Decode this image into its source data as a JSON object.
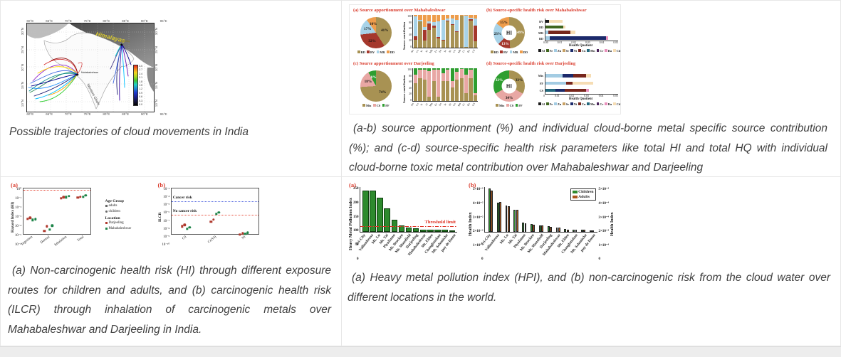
{
  "page": {
    "background": "#ffffff",
    "grid_border": "#e7e7e7",
    "accent_red": "#d93a2b"
  },
  "cells": {
    "top_left": {
      "caption": "Possible trajectories of cloud movements in India",
      "map": {
        "lon_ticks": [
          "60°E",
          "65°E",
          "70°E",
          "75°E",
          "80°E",
          "85°E",
          "90°E",
          "95°E"
        ],
        "lat_ticks": [
          "30°N",
          "25°N",
          "20°N",
          "15°N",
          "10°N"
        ],
        "region_label": "Himalayas",
        "site_northeast": "Darjeeling",
        "site_southwest": "Mahabaleshwar",
        "coast_label": "Western Ghats",
        "colorbar_ticks": [
          "3.0",
          "2.7",
          "2.4",
          "2.1",
          "1.8",
          "1.5",
          "1.2",
          "0.9",
          "0.6",
          "0.3",
          "0.0"
        ]
      }
    },
    "top_right": {
      "caption": "(a-b) source apportionment (%) and individual cloud-borne metal specific source contribution (%); and (c-d) source-specific health risk parameters like total HI and total HQ with individual cloud-borne toxic metal contribution over Mahabaleshwar and Darjeeling"
    },
    "bottom_left": {
      "caption": "(a) Non-carcinogenic health risk (HI) through different exposure routes for children and adults, and (b) carcinogenic health risk (ILCR) through inhalation of carcinogenic metals over Mahabaleshwar and Darjeeling in India.",
      "legend": {
        "age_title": "Age Group",
        "age_items": [
          "adults",
          "children"
        ],
        "location_title": "Location",
        "location_items": [
          {
            "label": "Darjeeling",
            "color": "#b03a2e"
          },
          {
            "label": "Mahabaleshwar",
            "color": "#1e8449"
          }
        ]
      }
    },
    "bottom_right": {
      "caption": "(a) Heavy metal pollution index (HPI), and (b) non-carcinogenic risk from the cloud water over different locations in the world."
    }
  },
  "chart_data": [
    {
      "type": "pie",
      "title": "(a)  Source apportionment over Mahabaleshwar",
      "labels": [
        "RD",
        "BV",
        "MR",
        "DD"
      ],
      "values": [
        41,
        32,
        17,
        10
      ],
      "colors": [
        "#a89253",
        "#a5382c",
        "#a8d3e8",
        "#ee9d4c"
      ],
      "label_colors": [
        "#111111",
        "#111111",
        "#111111",
        "#111111"
      ]
    },
    {
      "type": "stacked_bar",
      "ylabel": "Source contribution",
      "ylim": [
        0,
        100
      ],
      "yticks": [
        0,
        20,
        40,
        60,
        80,
        100
      ],
      "categories": [
        "Na",
        "Ca",
        "K",
        "Al",
        "Mg",
        "Fe",
        "Zn",
        "Sr",
        "Ni",
        "Cu",
        "Mn",
        "Cr",
        "Ba",
        "Cd"
      ],
      "series": [
        {
          "name": "RD",
          "color": "#a89253",
          "values": [
            25,
            80,
            22,
            55,
            60,
            28,
            22,
            80,
            70,
            48,
            97,
            3,
            83,
            20
          ]
        },
        {
          "name": "BV",
          "color": "#a5382c",
          "values": [
            10,
            0,
            33,
            18,
            8,
            5,
            3,
            2,
            2,
            2,
            0,
            0,
            3,
            48
          ]
        },
        {
          "name": "MR",
          "color": "#a8d3e8",
          "values": [
            60,
            5,
            8,
            7,
            10,
            47,
            60,
            8,
            18,
            35,
            0,
            95,
            6,
            22
          ]
        },
        {
          "name": "DD",
          "color": "#ee9d4c",
          "values": [
            5,
            15,
            37,
            20,
            22,
            20,
            15,
            10,
            10,
            15,
            3,
            2,
            8,
            10
          ]
        }
      ]
    },
    {
      "type": "donut",
      "title": "(b) Source-specific health risk over Mahabaleshwar",
      "center_label": "HI",
      "labels": [
        "RD",
        "BV",
        "MR",
        "DD"
      ],
      "values": [
        49,
        13,
        23,
        15
      ],
      "colors": [
        "#a89253",
        "#a5382c",
        "#a8d3e8",
        "#ee9d4c"
      ],
      "label_colors": [
        "#ffffff",
        "#ffffff",
        "#111111",
        "#111111"
      ]
    },
    {
      "type": "hbar",
      "xlabel": "Health Quotient",
      "xlim": 0.05,
      "xticks": [
        "0.00",
        "0.01",
        "0.02",
        "0.03",
        "0.04",
        "0.05"
      ],
      "categories": [
        "BV",
        "DD",
        "MR",
        "RD"
      ],
      "bars": [
        [
          {
            "m": "Al",
            "v": 0.0025
          },
          {
            "m": "Cd",
            "v": 0.0095
          }
        ],
        [
          {
            "m": "Fe",
            "v": 0.0125
          },
          {
            "m": "Cd",
            "v": 0.0015
          }
        ],
        [
          {
            "m": "Zn",
            "v": 0.002
          },
          {
            "m": "Cu",
            "v": 0.0155
          },
          {
            "m": "Cd",
            "v": 0.003
          }
        ],
        [
          {
            "m": "Zn",
            "v": 0.003
          },
          {
            "m": "Ni",
            "v": 0.0385
          },
          {
            "m": "Ba",
            "v": 0.0015
          }
        ]
      ],
      "metals": [
        {
          "label": "Al",
          "color": "#1a1a1a"
        },
        {
          "label": "Fe",
          "color": "#40661f"
        },
        {
          "label": "Zn",
          "color": "#a3cce3"
        },
        {
          "label": "Sr",
          "color": "#c8a165"
        },
        {
          "label": "Ni",
          "color": "#1b2a6b"
        },
        {
          "label": "Cu",
          "color": "#77261c"
        },
        {
          "label": "Mn",
          "color": "#23687d"
        },
        {
          "label": "Cr",
          "color": "#4a235a"
        },
        {
          "label": "Ba",
          "color": "#e991bc"
        },
        {
          "label": "Cd",
          "color": "#f6ddb4"
        }
      ]
    },
    {
      "type": "pie",
      "title": "(c)  Source apportionment over Darjeeling",
      "labels": [
        "Mix",
        "CS",
        "FF"
      ],
      "values": [
        74,
        18,
        8
      ],
      "colors": [
        "#a89253",
        "#e8a7a4",
        "#2e9e30"
      ],
      "label_colors": [
        "#111111",
        "#111111",
        "#ffffff"
      ]
    },
    {
      "type": "stacked_bar",
      "ylabel": "Source contribution",
      "ylim": [
        0,
        100
      ],
      "yticks": [
        0,
        20,
        40,
        60,
        80,
        100
      ],
      "categories": [
        "Na",
        "Ca",
        "K",
        "Al",
        "Mg",
        "Fe",
        "Zn",
        "Sr",
        "Ni",
        "Cu",
        "Mn",
        "Cr",
        "Ba",
        "Cd"
      ],
      "series": [
        {
          "name": "Mix",
          "color": "#a89253",
          "values": [
            55,
            70,
            65,
            12,
            60,
            12,
            60,
            60,
            42,
            65,
            70,
            25,
            70,
            18
          ]
        },
        {
          "name": "CS",
          "color": "#e8a7a4",
          "values": [
            25,
            25,
            30,
            80,
            35,
            83,
            25,
            35,
            18,
            25,
            28,
            55,
            25,
            7
          ]
        },
        {
          "name": "FF",
          "color": "#2e9e30",
          "values": [
            20,
            5,
            5,
            8,
            5,
            5,
            15,
            5,
            40,
            10,
            2,
            20,
            5,
            75
          ]
        }
      ]
    },
    {
      "type": "donut",
      "title": "(d)  Source-specific health risk over Darjeeling",
      "center_label": "HI",
      "labels": [
        "Mix",
        "CS",
        "FF"
      ],
      "values": [
        33,
        34,
        33
      ],
      "colors": [
        "#a89253",
        "#e8a7a4",
        "#2e9e30"
      ],
      "label_colors": [
        "#111111",
        "#111111",
        "#ffffff"
      ]
    },
    {
      "type": "hbar",
      "xlabel": "Health Quotient",
      "xlim": 0.05,
      "xticks": [
        "0",
        "0.01",
        "0.02",
        "0.03",
        "0.04",
        "0.05"
      ],
      "categories": [
        "Mix",
        "FF",
        "CS"
      ],
      "bars": [
        [
          {
            "m": "Zn",
            "v": 0.012
          },
          {
            "m": "Ni",
            "v": 0.0075
          },
          {
            "m": "Cu",
            "v": 0.0085
          },
          {
            "m": "Cd",
            "v": 0.0035
          }
        ],
        [
          {
            "m": "Zn",
            "v": 0.0145
          },
          {
            "m": "Cu",
            "v": 0.0045
          },
          {
            "m": "Cd",
            "v": 0.014
          }
        ],
        [
          {
            "m": "Mn",
            "v": 0.007
          },
          {
            "m": "Ni",
            "v": 0.0065
          },
          {
            "m": "Cu",
            "v": 0.0145
          },
          {
            "m": "Ba",
            "v": 0.002
          }
        ]
      ],
      "metals": [
        {
          "label": "Al",
          "color": "#1a1a1a"
        },
        {
          "label": "Fe",
          "color": "#40661f"
        },
        {
          "label": "Zn",
          "color": "#a3cce3"
        },
        {
          "label": "Sr",
          "color": "#c8a165"
        },
        {
          "label": "Ni",
          "color": "#1b2a6b"
        },
        {
          "label": "Cu",
          "color": "#77261c"
        },
        {
          "label": "Mn",
          "color": "#23687d"
        },
        {
          "label": "Cr",
          "color": "#4a235a"
        },
        {
          "label": "Ba",
          "color": "#e991bc"
        },
        {
          "label": "Cd",
          "color": "#f6ddb4"
        }
      ]
    },
    {
      "type": "scatter",
      "panel_label": "(a)",
      "ylabel": "Hazard Index (HI)",
      "yticks": [
        "10⁰",
        "10⁻¹",
        "10⁻²",
        "10⁻³",
        "10⁻⁴",
        "10⁻⁵",
        "10⁻⁶"
      ],
      "log_range": [
        0,
        -6
      ],
      "categories": [
        "Ingestion",
        "Dermal",
        "Inhalation",
        "Total"
      ],
      "ref_lines": [
        {
          "value": 1,
          "color": "#e74c3c"
        }
      ],
      "series": [
        {
          "name": "Darjeeling",
          "color": "#b03a2e",
          "adults": [
            0.0001,
            2.5e-06,
            0.05,
            0.06
          ],
          "children": [
            0.00013,
            1e-05,
            0.07,
            0.08
          ]
        },
        {
          "name": "Mahabaleshwar",
          "color": "#1e8449",
          "adults": [
            7e-05,
            4e-06,
            0.07,
            0.08
          ],
          "children": [
            9e-05,
            1.2e-05,
            0.1,
            0.12
          ]
        }
      ]
    },
    {
      "type": "scatter",
      "panel_label": "(b)",
      "ylabel": "ILCR",
      "yticks": [
        "10⁻³",
        "10⁻⁴",
        "10⁻⁵",
        "10⁻⁶",
        "10⁻⁷",
        "10⁻⁸",
        "10⁻⁹",
        "10⁻¹⁰"
      ],
      "log_range": [
        -3,
        -10
      ],
      "categories": [
        "Cd",
        "Cr(VI)",
        "Ni"
      ],
      "ref_lines": [
        {
          "value": 1e-05,
          "color": "#5b6ee1",
          "label": "Cancer risk"
        },
        {
          "value": 1e-07,
          "color": "#e74c3c",
          "label": "No cancer risk"
        }
      ],
      "series": [
        {
          "name": "Darjeeling",
          "color": "#b03a2e",
          "adults": [
            1.5e-09,
            8e-09,
            8e-11
          ],
          "children": [
            2.5e-09,
            1.5e-08,
            1.2e-10
          ]
        },
        {
          "name": "Mahabaleshwar",
          "color": "#1e8449",
          "adults": [
            6e-10,
            1.2e-07,
            1e-10
          ],
          "children": [
            1e-09,
            2e-07,
            1.5e-10
          ]
        }
      ]
    },
    {
      "type": "bar",
      "panel_label": "(a)",
      "ylabel": "Heavy Metal Pollution Index",
      "yticks": [
        "250",
        "200",
        "150",
        "100",
        "50",
        "0"
      ],
      "ylim": [
        0,
        250
      ],
      "categories": [
        "Tri-City",
        "Vallombrosa",
        "Mt. Lu",
        "Mt. Tai",
        "Plynlimon",
        "Mt. Brocken",
        "Mt. Mansfield",
        "Darjeeling",
        "Mahabaleshwar",
        "Mt. Elden",
        "Changbaishan",
        "Mt. Schmücke",
        "puy de Dome"
      ],
      "values": [
        232,
        230,
        190,
        130,
        70,
        36,
        26,
        22,
        15,
        13,
        12,
        12,
        10
      ],
      "bar_color": "#2d8a2d",
      "threshold": {
        "value": 30,
        "label": "Threshold limit",
        "color": "#e03527"
      }
    },
    {
      "type": "grouped_bar",
      "panel_label": "(b)",
      "ylabel_left": "Health Index",
      "ylabel_right": "Health Index",
      "yticks_left": [
        "5×10⁻²",
        "4×10⁻²",
        "3×10⁻²",
        "2×10⁻²",
        "1×10⁻²",
        "0"
      ],
      "yticks_right": [
        "5×10⁻⁴",
        "4×10⁻⁴",
        "3×10⁻⁴",
        "2×10⁻⁴",
        "1×10⁻⁴",
        "0"
      ],
      "ylim": [
        0,
        0.052
      ],
      "categories": [
        "Tri-City",
        "Vallombrosa",
        "Mt. Lu",
        "Mt. Tai",
        "Plynlimon",
        "Mt. Brocken",
        "Mt. Mansfield",
        "Darjeeling",
        "Mahabaleshwar",
        "Mt. Elden",
        "Changbaishan",
        "Mt. Schmücke",
        "puy de Dome"
      ],
      "series": [
        {
          "name": "Children",
          "color": "#2d8a2d",
          "values": [
            0.05,
            0.034,
            0.031,
            0.026,
            0.011,
            0.009,
            0.008,
            0.0065,
            0.0055,
            0.0033,
            0.0032,
            0.003,
            0.0022
          ]
        },
        {
          "name": "Adults",
          "color": "#a9561c",
          "values": [
            0.048,
            0.035,
            0.03,
            0.0255,
            0.0105,
            0.0085,
            0.0075,
            0.006,
            0.005,
            0.003,
            0.003,
            0.0028,
            0.002
          ]
        }
      ]
    }
  ]
}
